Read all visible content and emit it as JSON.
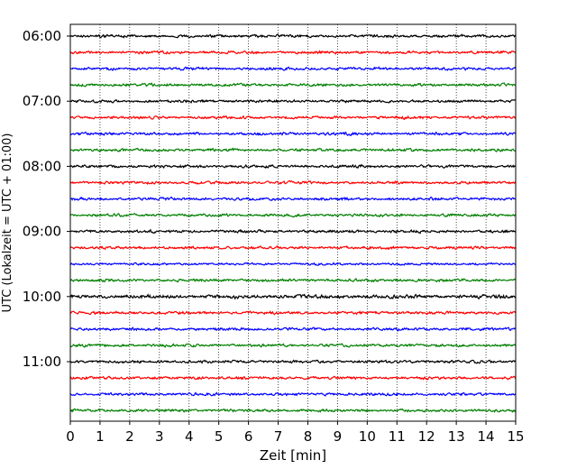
{
  "chart_data": {
    "type": "line",
    "title": "",
    "xlabel": "Zeit  [min]",
    "ylabel": "UTC (Lokalzeit = UTC + 01:00)",
    "xlim": [
      0,
      15
    ],
    "x_ticks": [
      0,
      1,
      2,
      3,
      4,
      5,
      6,
      7,
      8,
      9,
      10,
      11,
      12,
      13,
      14,
      15
    ],
    "x_tick_labels": [
      "0",
      "1",
      "2",
      "3",
      "4",
      "5",
      "6",
      "7",
      "8",
      "9",
      "10",
      "11",
      "12",
      "13",
      "14",
      "15"
    ],
    "y_tick_labels": [
      "06:00",
      "07:00",
      "08:00",
      "09:00",
      "10:00",
      "11:00"
    ],
    "grid": "vertical dotted",
    "trace_colors": [
      "#000000",
      "#ff0000",
      "#0000ff",
      "#008000"
    ],
    "traces": [
      {
        "start": "06:00",
        "amplitude": 2.0
      },
      {
        "start": "06:15",
        "amplitude": 2.0
      },
      {
        "start": "06:30",
        "amplitude": 2.0
      },
      {
        "start": "06:45",
        "amplitude": 2.0
      },
      {
        "start": "07:00",
        "amplitude": 2.0
      },
      {
        "start": "07:15",
        "amplitude": 2.0
      },
      {
        "start": "07:30",
        "amplitude": 2.0
      },
      {
        "start": "07:45",
        "amplitude": 2.0
      },
      {
        "start": "08:00",
        "amplitude": 2.0
      },
      {
        "start": "08:15",
        "amplitude": 2.0
      },
      {
        "start": "08:30",
        "amplitude": 2.0
      },
      {
        "start": "08:45",
        "amplitude": 2.0
      },
      {
        "start": "09:00",
        "amplitude": 2.0
      },
      {
        "start": "09:15",
        "amplitude": 2.0
      },
      {
        "start": "09:30",
        "amplitude": 1.6
      },
      {
        "start": "09:45",
        "amplitude": 2.0
      },
      {
        "start": "10:00",
        "amplitude": 2.6
      },
      {
        "start": "10:15",
        "amplitude": 2.0
      },
      {
        "start": "10:30",
        "amplitude": 2.0
      },
      {
        "start": "10:45",
        "amplitude": 2.0
      },
      {
        "start": "11:00",
        "amplitude": 2.0
      },
      {
        "start": "11:15",
        "amplitude": 2.0
      },
      {
        "start": "11:30",
        "amplitude": 2.0
      },
      {
        "start": "11:45",
        "amplitude": 2.0
      }
    ]
  }
}
